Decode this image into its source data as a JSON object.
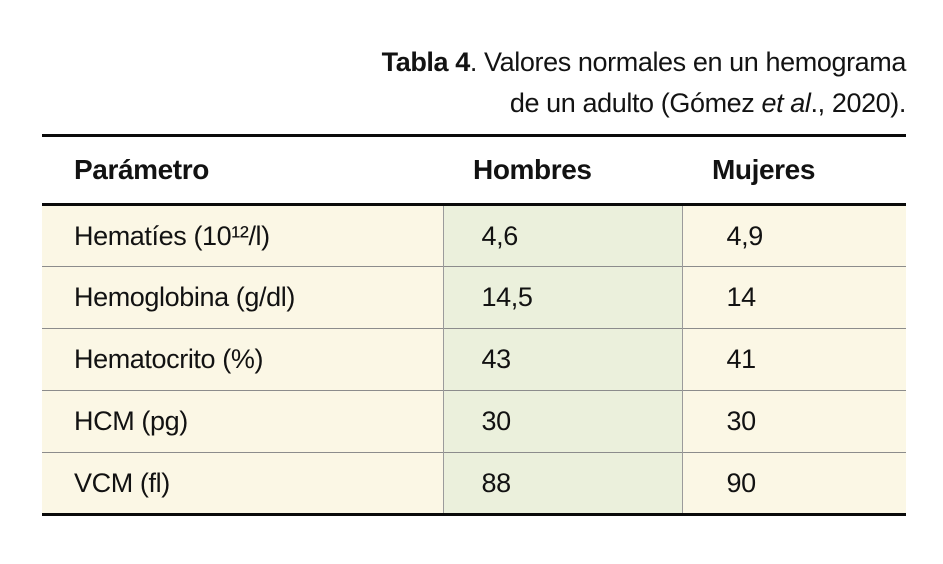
{
  "caption": {
    "prefix": "Tabla 4",
    "line1_rest": ". Valores normales en un hemograma",
    "line2_pre": "de un adulto (Gómez ",
    "line2_italic": "et al",
    "line2_post": "., 2020)."
  },
  "table": {
    "headers": {
      "param": "Parámetro",
      "hombres": "Hombres",
      "mujeres": "Mujeres"
    },
    "rows": [
      {
        "param": "Hematíes (10¹²/l)",
        "hombres": "4,6",
        "mujeres": "4,9"
      },
      {
        "param": "Hemoglobina (g/dl)",
        "hombres": "14,5",
        "mujeres": "14"
      },
      {
        "param": "Hematocrito (%)",
        "hombres": "43",
        "mujeres": "41"
      },
      {
        "param": "HCM (pg)",
        "hombres": "30",
        "mujeres": "30"
      },
      {
        "param": "VCM (fl)",
        "hombres": "88",
        "mujeres": "90"
      }
    ]
  },
  "colors": {
    "cream_cell": "#fbf7e5",
    "green_cell": "#ebf0dc",
    "rule_black": "#0a0a0a",
    "grid_gray": "#8c8c8c",
    "divider_gray": "#9b9b9b",
    "text": "#121212",
    "background": "#ffffff"
  }
}
